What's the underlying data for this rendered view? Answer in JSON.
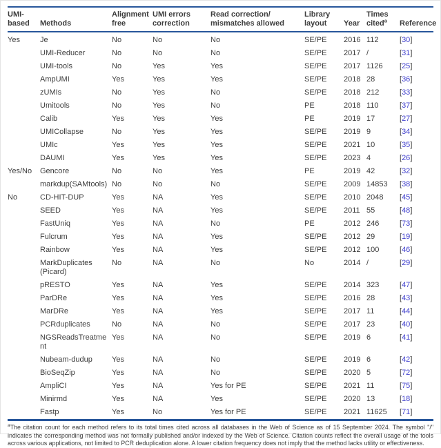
{
  "colors": {
    "rule_blue": "#27569b",
    "reference_link": "#4343cf",
    "body_text": "#3d3d3d"
  },
  "table": {
    "ref_open": "[",
    "ref_close": "]",
    "columns": [
      {
        "label": "UMI-\nbased"
      },
      {
        "label": "Methods"
      },
      {
        "label": "Alignment\nfree"
      },
      {
        "label": "UMI errors\ncorrection"
      },
      {
        "label": "Read correction/\nmismatches allowed"
      },
      {
        "label": "Library\nlayout"
      },
      {
        "label": "Year"
      },
      {
        "label": "Times\ncited",
        "sup": "a"
      },
      {
        "label": "Reference"
      }
    ],
    "rows": [
      {
        "group": "Yes",
        "method": "Je",
        "alignment_free": "No",
        "umi_errors": "No",
        "read_correction": "No",
        "library_layout": "SE/PE",
        "year": "2016",
        "times_cited": "112",
        "ref": "30"
      },
      {
        "group": "",
        "method": "UMI-Reducer",
        "alignment_free": "No",
        "umi_errors": "No",
        "read_correction": "No",
        "library_layout": "SE/PE",
        "year": "2017",
        "times_cited": "/",
        "ref": "31"
      },
      {
        "group": "",
        "method": "UMI-tools",
        "alignment_free": "No",
        "umi_errors": "Yes",
        "read_correction": "Yes",
        "library_layout": "SE/PE",
        "year": "2017",
        "times_cited": "1126",
        "ref": "25"
      },
      {
        "group": "",
        "method": "AmpUMI",
        "alignment_free": "Yes",
        "umi_errors": "Yes",
        "read_correction": "Yes",
        "library_layout": "SE/PE",
        "year": "2018",
        "times_cited": "28",
        "ref": "36"
      },
      {
        "group": "",
        "method": "zUMIs",
        "alignment_free": "No",
        "umi_errors": "Yes",
        "read_correction": "No",
        "library_layout": "SE/PE",
        "year": "2018",
        "times_cited": "212",
        "ref": "33"
      },
      {
        "group": "",
        "method": "Umitools",
        "alignment_free": "No",
        "umi_errors": "Yes",
        "read_correction": "No",
        "library_layout": "PE",
        "year": "2018",
        "times_cited": "110",
        "ref": "37"
      },
      {
        "group": "",
        "method": "Calib",
        "alignment_free": "Yes",
        "umi_errors": "Yes",
        "read_correction": "Yes",
        "library_layout": "PE",
        "year": "2019",
        "times_cited": "17",
        "ref": "27"
      },
      {
        "group": "",
        "method": "UMICollapse",
        "alignment_free": "No",
        "umi_errors": "Yes",
        "read_correction": "Yes",
        "library_layout": "SE/PE",
        "year": "2019",
        "times_cited": "9",
        "ref": "34"
      },
      {
        "group": "",
        "method": "UMIc",
        "alignment_free": "Yes",
        "umi_errors": "Yes",
        "read_correction": "Yes",
        "library_layout": "SE/PE",
        "year": "2021",
        "times_cited": "10",
        "ref": "35"
      },
      {
        "group": "",
        "method": "DAUMI",
        "alignment_free": "Yes",
        "umi_errors": "Yes",
        "read_correction": "Yes",
        "library_layout": "SE/PE",
        "year": "2023",
        "times_cited": "4",
        "ref": "26"
      },
      {
        "group": "Yes/No",
        "method": "Gencore",
        "alignment_free": "No",
        "umi_errors": "No",
        "read_correction": "Yes",
        "library_layout": "PE",
        "year": "2019",
        "times_cited": "42",
        "ref": "32"
      },
      {
        "group": "",
        "method": "markdup(SAMtools)",
        "alignment_free": "No",
        "umi_errors": "No",
        "read_correction": "No",
        "library_layout": "SE/PE",
        "year": "2009",
        "times_cited": "14853",
        "ref": "38"
      },
      {
        "group": "No",
        "method": "CD-HIT-DUP",
        "alignment_free": "Yes",
        "umi_errors": "NA",
        "read_correction": "Yes",
        "library_layout": "SE/PE",
        "year": "2010",
        "times_cited": "2048",
        "ref": "45"
      },
      {
        "group": "",
        "method": "SEED",
        "alignment_free": "Yes",
        "umi_errors": "NA",
        "read_correction": "Yes",
        "library_layout": "SE/PE",
        "year": "2011",
        "times_cited": "55",
        "ref": "48"
      },
      {
        "group": "",
        "method": "FastUniq",
        "alignment_free": "Yes",
        "umi_errors": "NA",
        "read_correction": "No",
        "library_layout": "PE",
        "year": "2012",
        "times_cited": "246",
        "ref": "73"
      },
      {
        "group": "",
        "method": "Fulcrum",
        "alignment_free": "Yes",
        "umi_errors": "NA",
        "read_correction": "Yes",
        "library_layout": "SE/PE",
        "year": "2012",
        "times_cited": "29",
        "ref": "19"
      },
      {
        "group": "",
        "method": "Rainbow",
        "alignment_free": "Yes",
        "umi_errors": "NA",
        "read_correction": "Yes",
        "library_layout": "SE/PE",
        "year": "2012",
        "times_cited": "100",
        "ref": "46"
      },
      {
        "group": "",
        "method": "MarkDuplicates (Picard)",
        "alignment_free": "No",
        "umi_errors": "NA",
        "read_correction": "No",
        "library_layout": "No",
        "year": "2014",
        "times_cited": "/",
        "ref": "29"
      },
      {
        "group": "",
        "method": "pRESTO",
        "alignment_free": "Yes",
        "umi_errors": "NA",
        "read_correction": "Yes",
        "library_layout": "SE/PE",
        "year": "2014",
        "times_cited": "323",
        "ref": "47"
      },
      {
        "group": "",
        "method": "ParDRe",
        "alignment_free": "Yes",
        "umi_errors": "NA",
        "read_correction": "Yes",
        "library_layout": "SE/PE",
        "year": "2016",
        "times_cited": "28",
        "ref": "43"
      },
      {
        "group": "",
        "method": "MarDRe",
        "alignment_free": "Yes",
        "umi_errors": "NA",
        "read_correction": "Yes",
        "library_layout": "SE/PE",
        "year": "2017",
        "times_cited": "11",
        "ref": "44"
      },
      {
        "group": "",
        "method": "PCRduplicates",
        "alignment_free": "No",
        "umi_errors": "NA",
        "read_correction": "No",
        "library_layout": "SE/PE",
        "year": "2017",
        "times_cited": "23",
        "ref": "40"
      },
      {
        "group": "",
        "method": "NGSReadsTreatment",
        "alignment_free": "Yes",
        "umi_errors": "NA",
        "read_correction": "No",
        "library_layout": "SE/PE",
        "year": "2019",
        "times_cited": "6",
        "ref": "41"
      },
      {
        "group": "",
        "method": "Nubeam-dudup",
        "alignment_free": "Yes",
        "umi_errors": "NA",
        "read_correction": "No",
        "library_layout": "SE/PE",
        "year": "2019",
        "times_cited": "6",
        "ref": "42"
      },
      {
        "group": "",
        "method": "BioSeqZip",
        "alignment_free": "Yes",
        "umi_errors": "NA",
        "read_correction": "No",
        "library_layout": "SE/PE",
        "year": "2020",
        "times_cited": "5",
        "ref": "72"
      },
      {
        "group": "",
        "method": "AmpliCI",
        "alignment_free": "Yes",
        "umi_errors": "NA",
        "read_correction": "Yes for PE",
        "library_layout": "SE/PE",
        "year": "2021",
        "times_cited": "11",
        "ref": "75"
      },
      {
        "group": "",
        "method": "Minirmd",
        "alignment_free": "Yes",
        "umi_errors": "NA",
        "read_correction": "Yes",
        "library_layout": "SE/PE",
        "year": "2020",
        "times_cited": "13",
        "ref": "18"
      },
      {
        "group": "",
        "method": "Fastp",
        "alignment_free": "Yes",
        "umi_errors": "No",
        "read_correction": "Yes for PE",
        "library_layout": "SE/PE",
        "year": "2021",
        "times_cited": "11625",
        "ref": "71"
      }
    ]
  },
  "footnote": {
    "marker": "a",
    "text": "The citation count for each method refers to its total times cited across all databases in the Web of Science as of 15 September 2024. The symbol \"/\" indicates the corresponding method was not formally published and/or indexed by the Web of Science. Citation counts reflect the overall usage of the tools across various applications, not limited to PCR deduplication alone. A lower citation frequency does not imply that the method lacks utility or effectiveness."
  }
}
